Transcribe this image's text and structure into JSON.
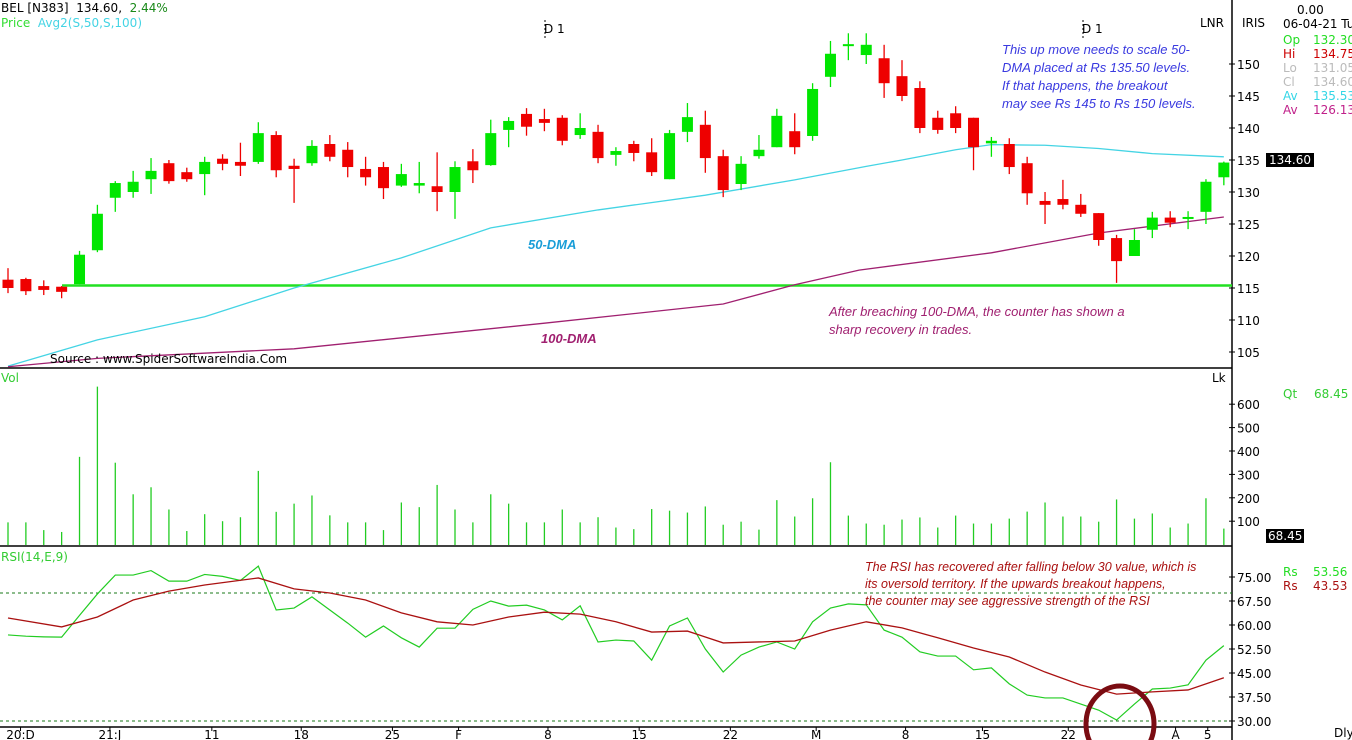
{
  "header": {
    "symbol": "BEL [N383]",
    "last": "134.60,",
    "change": "2.44%",
    "price_label": "Price",
    "avg_label": "Avg2(S,50,S,100)"
  },
  "right_panel": {
    "lnr": "LNR",
    "iris": "IRIS",
    "value_top": "0.00",
    "date": "06-04-21 Tu",
    "rows": [
      {
        "k": "Op",
        "v": "132.30",
        "color": "#22dd22"
      },
      {
        "k": "Hi",
        "v": "134.75",
        "color": "#cc0000"
      },
      {
        "k": "Lo",
        "v": "131.05",
        "color": "#bbbbbb"
      },
      {
        "k": "Cl",
        "v": "134.60",
        "color": "#bbbbbb"
      },
      {
        "k": "Av",
        "v": "135.53",
        "color": "#33d6e6"
      },
      {
        "k": "Av",
        "v": "126.13",
        "color": "#c0208a"
      }
    ],
    "price_tag": "134.60",
    "vol_unit": "Lk",
    "qt_label": "Qt",
    "qt_value": "68.45",
    "vol_tag": "68.45",
    "rsi_rows": [
      {
        "k": "Rs",
        "v": "53.56",
        "color": "#22dd22"
      },
      {
        "k": "Rs",
        "v": "43.53",
        "color": "#aa1111"
      }
    ],
    "period": "Dly"
  },
  "annotations": {
    "d1_a": "D 1",
    "d1_b": "D 1",
    "blue_note": [
      "This up move needs to scale 50-",
      "DMA placed at Rs 135.50 levels.",
      "If that happens, the breakout",
      "may see Rs 145 to Rs 150 levels."
    ],
    "dma50": "50-DMA",
    "dma100": "100-DMA",
    "purple_note": [
      "After breaching 100-DMA, the counter has shown a",
      "sharp recovery in trades."
    ],
    "source": "Source : www.SpiderSoftwareIndia.Com",
    "rsi_note": [
      "The RSI has recovered after falling below 30 value, which is",
      "its oversold territory. If the upwards breakout happens,",
      "the counter may see aggressive strength of the RSI"
    ]
  },
  "colors": {
    "up": "#00e600",
    "down": "#ee0000",
    "ma50": "#44d4e4",
    "ma100": "#a02070",
    "support": "#22e022",
    "vol": "#22cc22",
    "rsi": "#22cc22",
    "signal": "#aa1111",
    "circle": "#7a0c12"
  },
  "chart_data": [
    {
      "type": "candlestick",
      "title": "BEL [N383]",
      "ylim": [
        102,
        156
      ],
      "yticks": [
        "150",
        "145",
        "140",
        "135",
        "130",
        "125",
        "120",
        "115",
        "110",
        "105"
      ],
      "xticks": [
        {
          "i": 0.7,
          "label": "20:D"
        },
        {
          "i": 5.7,
          "label": "21:J"
        },
        {
          "i": 11.4,
          "label": "11"
        },
        {
          "i": 16.4,
          "label": "18"
        },
        {
          "i": 21.5,
          "label": "25"
        },
        {
          "i": 25.2,
          "label": "F"
        },
        {
          "i": 30.2,
          "label": "8"
        },
        {
          "i": 35.3,
          "label": "15"
        },
        {
          "i": 40.4,
          "label": "22"
        },
        {
          "i": 45.2,
          "label": "M"
        },
        {
          "i": 50.2,
          "label": "8"
        },
        {
          "i": 54.5,
          "label": "15"
        },
        {
          "i": 59.3,
          "label": "22"
        },
        {
          "i": 65.3,
          "label": "A"
        },
        {
          "i": 67.1,
          "label": "5"
        }
      ],
      "ohlc": [
        [
          116.3,
          118.1,
          114.2,
          115.0
        ],
        [
          116.4,
          116.6,
          113.9,
          114.5
        ],
        [
          115.3,
          116.2,
          113.9,
          114.7
        ],
        [
          115.2,
          115.3,
          113.4,
          114.4
        ],
        [
          115.6,
          120.8,
          115.6,
          120.2
        ],
        [
          120.9,
          128.0,
          120.6,
          126.6
        ],
        [
          129.1,
          131.7,
          126.9,
          131.4
        ],
        [
          130.0,
          133.3,
          129.1,
          131.6
        ],
        [
          132.0,
          135.3,
          129.7,
          133.3
        ],
        [
          134.5,
          135.0,
          131.3,
          131.7
        ],
        [
          133.1,
          133.8,
          131.6,
          132.0
        ],
        [
          132.8,
          135.5,
          129.5,
          134.7
        ],
        [
          135.2,
          135.9,
          133.4,
          134.4
        ],
        [
          134.7,
          137.7,
          132.5,
          134.1
        ],
        [
          134.7,
          140.9,
          134.4,
          139.2
        ],
        [
          138.9,
          139.5,
          132.3,
          133.4
        ],
        [
          134.1,
          135.2,
          128.3,
          133.6
        ],
        [
          134.5,
          138.1,
          134.1,
          137.2
        ],
        [
          137.5,
          138.9,
          134.8,
          135.5
        ],
        [
          136.6,
          137.8,
          132.3,
          133.9
        ],
        [
          133.6,
          135.5,
          131.0,
          132.3
        ],
        [
          133.9,
          134.7,
          128.9,
          130.6
        ],
        [
          131.0,
          134.4,
          130.8,
          132.8
        ],
        [
          131.0,
          134.7,
          129.8,
          131.4
        ],
        [
          130.9,
          136.2,
          127.0,
          130.0
        ],
        [
          130.0,
          134.8,
          125.8,
          133.9
        ],
        [
          134.8,
          136.7,
          131.4,
          133.4
        ],
        [
          134.2,
          141.3,
          134.1,
          139.2
        ],
        [
          139.7,
          141.7,
          137.0,
          141.1
        ],
        [
          142.2,
          143.1,
          138.8,
          140.2
        ],
        [
          141.4,
          143.0,
          139.5,
          140.8
        ],
        [
          141.6,
          142.0,
          137.3,
          138.0
        ],
        [
          138.9,
          142.3,
          138.3,
          140.0
        ],
        [
          139.4,
          140.5,
          134.5,
          135.3
        ],
        [
          135.8,
          137.0,
          134.1,
          136.4
        ],
        [
          137.5,
          138.0,
          134.8,
          136.1
        ],
        [
          136.2,
          138.4,
          132.5,
          133.1
        ],
        [
          132.0,
          139.7,
          132.0,
          139.2
        ],
        [
          139.4,
          143.9,
          137.8,
          141.7
        ],
        [
          140.5,
          142.7,
          133.0,
          135.3
        ],
        [
          135.6,
          136.6,
          129.2,
          130.3
        ],
        [
          131.25,
          135.6,
          130.3,
          134.4
        ],
        [
          135.6,
          138.9,
          135.2,
          136.6
        ],
        [
          137.0,
          143.0,
          137.0,
          141.9
        ],
        [
          139.5,
          142.3,
          135.9,
          137.0
        ],
        [
          138.75,
          147.0,
          138.0,
          146.1
        ],
        [
          148.0,
          153.6,
          146.4,
          151.6
        ],
        [
          153.0,
          154.8,
          150.6,
          153.1
        ],
        [
          151.4,
          154.8,
          150.0,
          153.0
        ],
        [
          150.9,
          153.0,
          144.7,
          147.0
        ],
        [
          148.1,
          150.6,
          144.2,
          145.0
        ],
        [
          146.25,
          147.3,
          139.2,
          140.0
        ],
        [
          141.6,
          142.7,
          139.1,
          139.7
        ],
        [
          142.3,
          143.4,
          139.2,
          140.0
        ],
        [
          141.6,
          141.6,
          133.4,
          137.0
        ],
        [
          137.6,
          138.6,
          135.5,
          138.0
        ],
        [
          137.5,
          138.4,
          132.8,
          133.9
        ],
        [
          134.5,
          135.5,
          128.0,
          129.8
        ],
        [
          128.6,
          130.0,
          125.0,
          128.0
        ],
        [
          128.9,
          131.9,
          127.3,
          128.0
        ],
        [
          128.0,
          129.7,
          126.1,
          126.6
        ],
        [
          126.7,
          126.7,
          121.6,
          122.5
        ],
        [
          122.8,
          123.3,
          115.8,
          119.2
        ],
        [
          120.0,
          124.2,
          120.0,
          122.5
        ],
        [
          124.1,
          126.9,
          122.8,
          126.0
        ],
        [
          126.0,
          127.0,
          124.5,
          125.2
        ],
        [
          126.0,
          127.0,
          124.2,
          126.1
        ],
        [
          126.9,
          132.0,
          125.0,
          131.6
        ],
        [
          132.3,
          134.75,
          131.05,
          134.6
        ]
      ],
      "ma50": [
        [
          0,
          102.8
        ],
        [
          5,
          106.9
        ],
        [
          11,
          110.5
        ],
        [
          16,
          115
        ],
        [
          22,
          119.7
        ],
        [
          27,
          124.4
        ],
        [
          33,
          127.2
        ],
        [
          39,
          129.5
        ],
        [
          44,
          131.9
        ],
        [
          48,
          134
        ],
        [
          50,
          135
        ],
        [
          53,
          136.6
        ],
        [
          55,
          137.4
        ],
        [
          58,
          137.3
        ],
        [
          61,
          136.8
        ],
        [
          64,
          136
        ],
        [
          68,
          135.5
        ]
      ],
      "ma100": [
        [
          0,
          102.7
        ],
        [
          5,
          104
        ],
        [
          16,
          105.5
        ],
        [
          30,
          109.5
        ],
        [
          40,
          112.5
        ],
        [
          44,
          115.5
        ],
        [
          47.6,
          117.8
        ],
        [
          55,
          120.5
        ],
        [
          61,
          123.6
        ],
        [
          68,
          126.1
        ]
      ],
      "support_level": 115.4
    },
    {
      "type": "bar",
      "title": "Vol",
      "unit": "Lk",
      "ylim": [
        0,
        700
      ],
      "yticks": [
        "600",
        "500",
        "400",
        "300",
        "200",
        "100"
      ],
      "values": [
        95,
        95,
        62,
        54,
        375,
        675,
        350,
        215,
        245,
        150,
        58,
        130,
        100,
        117,
        315,
        140,
        175,
        210,
        125,
        95,
        95,
        62,
        180,
        160,
        255,
        150,
        95,
        215,
        175,
        95,
        95,
        150,
        95,
        117,
        73,
        66,
        152,
        145,
        137,
        163,
        85,
        98,
        64,
        190,
        120,
        198,
        352,
        124,
        90,
        85,
        107,
        116,
        73,
        124,
        90,
        90,
        111,
        141,
        180,
        120,
        120,
        98,
        193,
        111,
        133,
        73,
        90,
        198,
        68.45
      ]
    },
    {
      "type": "line",
      "title": "RSI(14,E,9)",
      "ylim": [
        28,
        82
      ],
      "yticks": [
        "75.00",
        "67.50",
        "60.00",
        "52.50",
        "45.00",
        "37.50",
        "30.00"
      ],
      "levels": [
        70,
        30
      ],
      "rsi": [
        56.9,
        56.5,
        56.3,
        56.2,
        63,
        69.7,
        75.6,
        75.6,
        77,
        73.7,
        73.7,
        75.8,
        75.2,
        73.9,
        78.4,
        64.7,
        65.3,
        68.8,
        64.7,
        60.6,
        56.2,
        59.7,
        56,
        53.1,
        59,
        59,
        64.9,
        67.5,
        65.9,
        66.2,
        64.7,
        61.6,
        66,
        54.7,
        55.3,
        55,
        49,
        59.7,
        62.2,
        52.5,
        45.3,
        50.6,
        53.1,
        54.7,
        52.5,
        61,
        65.3,
        66.6,
        66.3,
        58.4,
        56.2,
        51.6,
        50.3,
        50.3,
        46,
        46.6,
        41.6,
        38.1,
        37.2,
        37.2,
        35.3,
        33.4,
        30.3,
        35.3,
        40,
        40.3,
        41.3,
        49,
        53.56
      ],
      "signal": [
        [
          0,
          62.2
        ],
        [
          3,
          59.4
        ],
        [
          5,
          62.5
        ],
        [
          7,
          67.8
        ],
        [
          9,
          70.6
        ],
        [
          11,
          72.5
        ],
        [
          14,
          74.7
        ],
        [
          16,
          71.3
        ],
        [
          18,
          70
        ],
        [
          20,
          67.8
        ],
        [
          22,
          63.8
        ],
        [
          24,
          61
        ],
        [
          26,
          60
        ],
        [
          28,
          62.5
        ],
        [
          30,
          64
        ],
        [
          32,
          63.4
        ],
        [
          34,
          61
        ],
        [
          36,
          57.8
        ],
        [
          38,
          58.1
        ],
        [
          40,
          54.4
        ],
        [
          42,
          54.7
        ],
        [
          44,
          55
        ],
        [
          46,
          58.4
        ],
        [
          48,
          61
        ],
        [
          50,
          59.1
        ],
        [
          52,
          56
        ],
        [
          54,
          52.8
        ],
        [
          56,
          50
        ],
        [
          58,
          45.3
        ],
        [
          60,
          41.25
        ],
        [
          62,
          38.4
        ],
        [
          64,
          39.1
        ],
        [
          66,
          39.7
        ],
        [
          68,
          43.53
        ]
      ]
    }
  ]
}
